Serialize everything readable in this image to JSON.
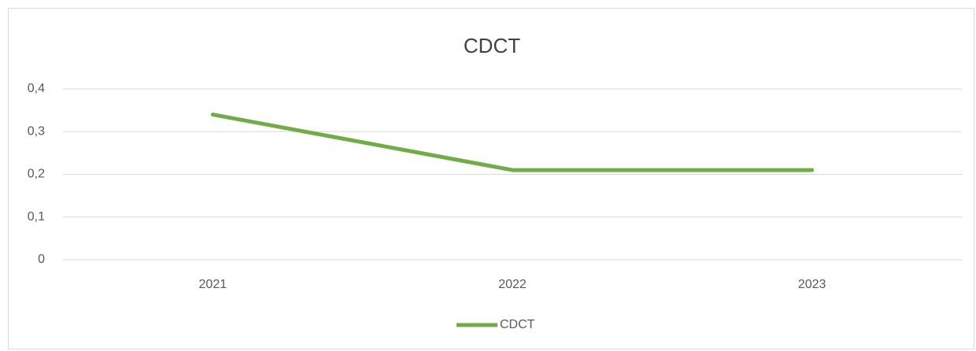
{
  "chart_data": {
    "type": "line",
    "title": "CDCT",
    "categories": [
      "2021",
      "2022",
      "2023"
    ],
    "series": [
      {
        "name": "CDCT",
        "color": "#70ad47",
        "values": [
          0.34,
          0.21,
          0.21
        ]
      }
    ],
    "ylim": [
      0,
      0.4
    ],
    "yticks": [
      0,
      {
        "value": 0.1,
        "label": "0,1"
      },
      {
        "value": 0.2,
        "label": "0,2"
      },
      {
        "value": 0.3,
        "label": "0,3"
      },
      {
        "value": 0.4,
        "label": "0,4"
      }
    ],
    "grid": true,
    "legend": "bottom"
  }
}
